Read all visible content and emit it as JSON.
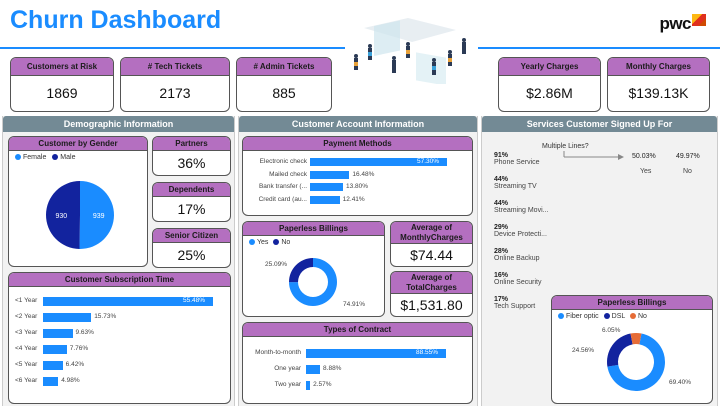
{
  "header": {
    "title": "Churn Dashboard",
    "logo_text": "pwc"
  },
  "kpis": [
    {
      "label": "Customers at Risk",
      "value": "1869"
    },
    {
      "label": "# Tech Tickets",
      "value": "2173"
    },
    {
      "label": "# Admin Tickets",
      "value": "885"
    },
    {
      "label": "Yearly Charges",
      "value": "$2.86M"
    },
    {
      "label": "Monthly Charges",
      "value": "$139.13K"
    }
  ],
  "sections": {
    "demographic": "Demographic Information",
    "account": "Customer Account Information",
    "services": "Services Customer Signed Up For"
  },
  "colors": {
    "blue": "#1a8cff",
    "navy": "#12239e",
    "orange": "#e66c37",
    "purple_header": "#b46fc0",
    "section_header": "#738a95"
  },
  "gender": {
    "title": "Customer by Gender",
    "legend": [
      "Female",
      "Male"
    ],
    "values": [
      930,
      939
    ]
  },
  "partners": {
    "label": "Partners",
    "value": "36%"
  },
  "dependents": {
    "label": "Dependents",
    "value": "17%"
  },
  "senior": {
    "label": "Senior Citizen",
    "value": "25%"
  },
  "subscription": {
    "title": "Customer Subscription Time",
    "rows": [
      {
        "label": "<1 Year",
        "value": 55.48,
        "text": "55.48%"
      },
      {
        "label": "<2 Year",
        "value": 15.73,
        "text": "15.73%"
      },
      {
        "label": "<3 Year",
        "value": 9.63,
        "text": "9.63%"
      },
      {
        "label": "<4 Year",
        "value": 7.76,
        "text": "7.76%"
      },
      {
        "label": "<5 Year",
        "value": 6.42,
        "text": "6.42%"
      },
      {
        "label": "<6 Year",
        "value": 4.98,
        "text": "4.98%"
      }
    ]
  },
  "payment": {
    "title": "Payment Methods",
    "rows": [
      {
        "label": "Electronic check",
        "value": 57.3,
        "text": "57.30%"
      },
      {
        "label": "Mailed check",
        "value": 16.48,
        "text": "16.48%"
      },
      {
        "label": "Bank transfer (...",
        "value": 13.8,
        "text": "13.80%"
      },
      {
        "label": "Credit card (au...",
        "value": 12.41,
        "text": "12.41%"
      }
    ]
  },
  "paperless_account": {
    "title": "Paperless Billings",
    "legend": [
      "Yes",
      "No"
    ],
    "values": [
      74.91,
      25.09
    ],
    "labels": [
      "74.91%",
      "25.09%"
    ]
  },
  "avg_monthly": {
    "label": "Average of MonthlyCharges",
    "value": "$74.44"
  },
  "avg_total": {
    "label": "Average of TotalCharges",
    "value": "$1,531.80"
  },
  "contract": {
    "title": "Types of Contract",
    "rows": [
      {
        "label": "Month-to-month",
        "value": 88.55,
        "text": "88.55%"
      },
      {
        "label": "One year",
        "value": 8.88,
        "text": "8.88%"
      },
      {
        "label": "Two year",
        "value": 2.57,
        "text": "2.57%"
      }
    ]
  },
  "services": {
    "items": [
      {
        "pct": "91%",
        "name": "Phone Service"
      },
      {
        "pct": "44%",
        "name": "Streaming TV"
      },
      {
        "pct": "44%",
        "name": "Streaming Movi..."
      },
      {
        "pct": "29%",
        "name": "Device Protecti..."
      },
      {
        "pct": "28%",
        "name": "Online Backup"
      },
      {
        "pct": "16%",
        "name": "Online Security"
      },
      {
        "pct": "17%",
        "name": "Tech Support"
      }
    ],
    "multiple_lines": {
      "label": "Multiple Lines?",
      "yes_pct": "50.03%",
      "no_pct": "49.97%",
      "yes_label": "Yes",
      "no_label": "No"
    }
  },
  "internet": {
    "title": "Paperless Billings",
    "legend": [
      "Fiber optic",
      "DSL",
      "No"
    ],
    "values": [
      69.4,
      24.56,
      6.05
    ],
    "labels": [
      "69.40%",
      "24.56%",
      "6.05%"
    ]
  },
  "chart_data": [
    {
      "type": "pie",
      "title": "Customer by Gender",
      "categories": [
        "Female",
        "Male"
      ],
      "values": [
        930,
        939
      ]
    },
    {
      "type": "bar",
      "title": "Customer Subscription Time",
      "categories": [
        "<1 Year",
        "<2 Year",
        "<3 Year",
        "<4 Year",
        "<5 Year",
        "<6 Year"
      ],
      "values": [
        55.48,
        15.73,
        9.63,
        7.76,
        6.42,
        4.98
      ]
    },
    {
      "type": "bar",
      "title": "Payment Methods",
      "categories": [
        "Electronic check",
        "Mailed check",
        "Bank transfer (...",
        "Credit card (au..."
      ],
      "values": [
        57.3,
        16.48,
        13.8,
        12.41
      ]
    },
    {
      "type": "pie",
      "title": "Paperless Billings",
      "categories": [
        "Yes",
        "No"
      ],
      "values": [
        74.91,
        25.09
      ]
    },
    {
      "type": "bar",
      "title": "Types of Contract",
      "categories": [
        "Month-to-month",
        "One year",
        "Two year"
      ],
      "values": [
        88.55,
        8.88,
        2.57
      ]
    },
    {
      "type": "pie",
      "title": "Paperless Billings",
      "categories": [
        "Fiber optic",
        "DSL",
        "No"
      ],
      "values": [
        69.4,
        24.56,
        6.05
      ]
    }
  ]
}
